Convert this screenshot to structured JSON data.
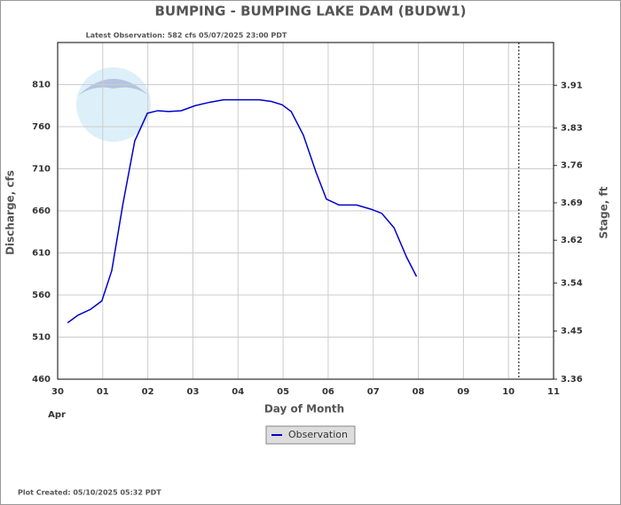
{
  "chart_data": {
    "type": "line",
    "title": "BUMPING - BUMPING LAKE DAM  (BUDW1)",
    "subtitle": "Latest Observation: 582 cfs 05/07/2025 23:00 PDT",
    "footer": "Plot Created: 05/10/2025 05:32 PDT",
    "xlabel": "Day of Month",
    "xsublabel": "Apr",
    "ylabel": "Discharge, cfs",
    "y2label": "Stage, ft",
    "xlim": [
      0,
      11
    ],
    "xticks": [
      {
        "value": 0,
        "label": "30"
      },
      {
        "value": 1,
        "label": "01"
      },
      {
        "value": 2,
        "label": "02"
      },
      {
        "value": 3,
        "label": "03"
      },
      {
        "value": 4,
        "label": "04"
      },
      {
        "value": 5,
        "label": "05"
      },
      {
        "value": 6,
        "label": "06"
      },
      {
        "value": 7,
        "label": "07"
      },
      {
        "value": 8,
        "label": "08"
      },
      {
        "value": 9,
        "label": "09"
      },
      {
        "value": 10,
        "label": "10"
      },
      {
        "value": 11,
        "label": "11"
      }
    ],
    "ylim": [
      460,
      860
    ],
    "yticks": [
      460,
      510,
      560,
      610,
      660,
      710,
      760,
      810
    ],
    "y2lim": [
      3.36,
      3.99
    ],
    "y2ticks": [
      3.36,
      3.45,
      3.54,
      3.62,
      3.69,
      3.76,
      3.83,
      3.91
    ],
    "grid": true,
    "current_time_x": 10.23,
    "series": [
      {
        "name": "Observation",
        "color": "#0000cc",
        "x": [
          0.22,
          0.45,
          0.73,
          0.98,
          1.2,
          1.45,
          1.71,
          1.99,
          2.22,
          2.46,
          2.74,
          3.05,
          3.37,
          3.68,
          4.04,
          4.47,
          4.74,
          4.98,
          5.18,
          5.45,
          5.73,
          5.96,
          6.24,
          6.63,
          6.95,
          7.19,
          7.46,
          7.74,
          7.96
        ],
        "values": [
          527,
          536,
          543,
          553,
          589,
          669,
          743,
          776,
          779,
          778,
          779,
          785,
          789,
          792,
          792,
          792,
          790,
          786,
          778,
          750,
          706,
          674,
          667,
          667,
          662,
          657,
          640,
          605,
          582
        ]
      }
    ]
  }
}
